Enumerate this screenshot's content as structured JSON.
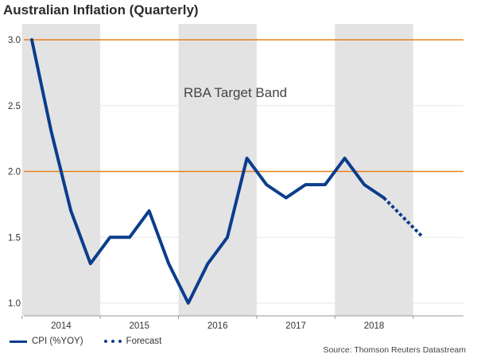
{
  "title": "Australian Inflation (Quarterly)",
  "source": "Source: Thomson Reuters Datastream",
  "annotation": "RBA Target Band",
  "colors": {
    "series": "#0b3d8c",
    "band_lines": "#e8801f",
    "shading": "#e3e3e3",
    "grid": "#e6e6e6"
  },
  "chart_data": {
    "type": "line",
    "title": "Australian Inflation (Quarterly)",
    "xlabel": "",
    "ylabel": "",
    "ylim": [
      1.0,
      3.0
    ],
    "yticks": [
      1.0,
      1.5,
      2.0,
      2.5,
      3.0
    ],
    "ytick_labels": [
      "1.0",
      "1.5",
      "2.0",
      "2.5",
      "3.0"
    ],
    "grid": true,
    "legend_position": "bottom-left",
    "year_labels": [
      "2014",
      "2015",
      "2016",
      "2017",
      "2018"
    ],
    "shaded_years": [
      "2014",
      "2016",
      "2018"
    ],
    "target_band": [
      2.0,
      3.0
    ],
    "x": [
      "2014-Q1",
      "2014-Q2",
      "2014-Q3",
      "2014-Q4",
      "2015-Q1",
      "2015-Q2",
      "2015-Q3",
      "2015-Q4",
      "2016-Q1",
      "2016-Q2",
      "2016-Q3",
      "2016-Q4",
      "2017-Q1",
      "2017-Q2",
      "2017-Q3",
      "2017-Q4",
      "2018-Q1",
      "2018-Q2",
      "2018-Q3",
      "2018-Q4",
      "2019-Q1"
    ],
    "series": [
      {
        "name": "CPI (%YOY)",
        "style": "solid",
        "values": [
          3.0,
          2.3,
          1.7,
          1.3,
          1.5,
          1.5,
          1.7,
          1.3,
          1.0,
          1.3,
          1.5,
          2.1,
          1.9,
          1.8,
          1.9,
          1.9,
          2.1,
          1.9,
          1.8,
          null,
          null
        ]
      },
      {
        "name": "Forecast",
        "style": "dotted",
        "values": [
          null,
          null,
          null,
          null,
          null,
          null,
          null,
          null,
          null,
          null,
          null,
          null,
          null,
          null,
          null,
          null,
          null,
          null,
          1.8,
          1.65,
          1.5
        ]
      }
    ]
  }
}
